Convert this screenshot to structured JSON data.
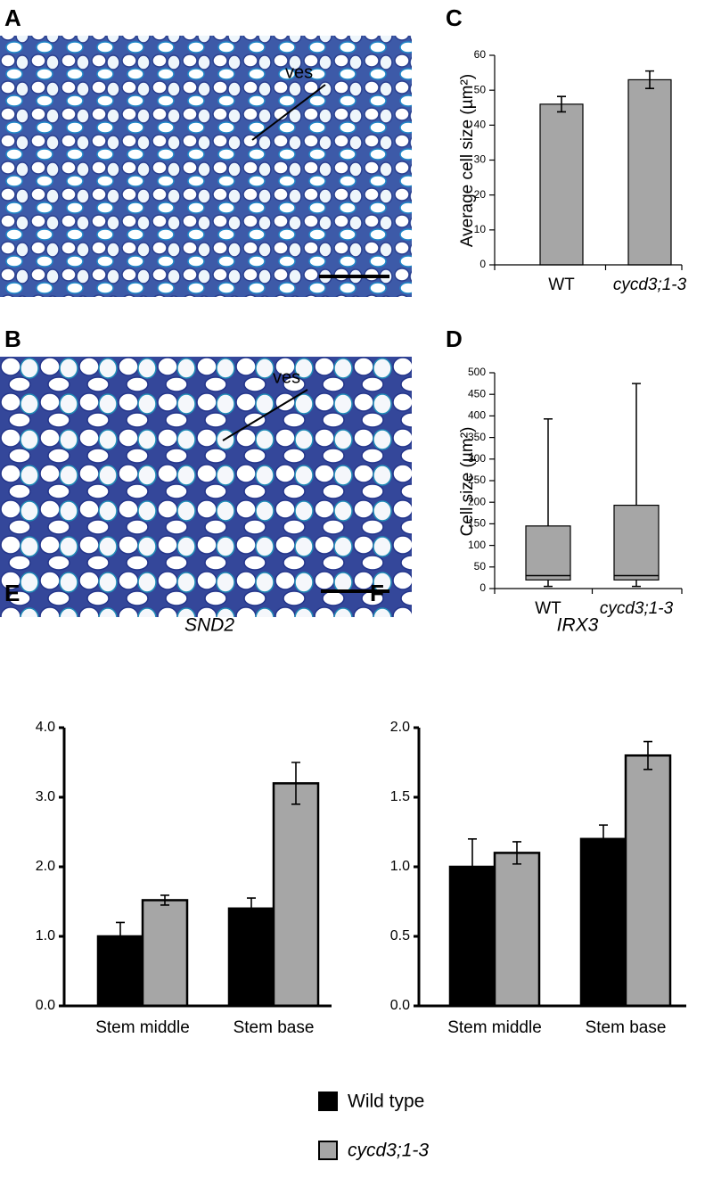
{
  "panel_labels": [
    "A",
    "B",
    "C",
    "D",
    "E",
    "F"
  ],
  "micrographs": [
    {
      "label": "ves"
    },
    {
      "label": "ves"
    }
  ],
  "chart_data": [
    {
      "type": "bar",
      "ylabel": "Average cell size (µm²)",
      "categories": [
        "WT",
        "cycd3;1-3"
      ],
      "values": [
        46,
        53
      ],
      "errors": [
        2.2,
        2.5
      ],
      "color": "#a6a6a6",
      "ylim": [
        0,
        60
      ],
      "yticks": [
        0,
        10,
        20,
        30,
        40,
        50,
        60
      ]
    },
    {
      "type": "box",
      "ylabel": "Cell size (µm²)",
      "categories": [
        "WT",
        "cycd3;1-3"
      ],
      "min": [
        5,
        5
      ],
      "q1": [
        20,
        20
      ],
      "median": [
        30,
        30
      ],
      "q3": [
        145,
        193
      ],
      "max": [
        393,
        475
      ],
      "color": "#a6a6a6",
      "ylim": [
        0,
        500
      ],
      "yticks": [
        0,
        50,
        100,
        150,
        200,
        250,
        300,
        350,
        400,
        450,
        500
      ]
    },
    {
      "type": "bar",
      "title": "SND2",
      "categories": [
        "Stem middle",
        "Stem base"
      ],
      "series": [
        {
          "name": "Wild type",
          "color": "#000000",
          "values": [
            1.0,
            1.4
          ],
          "errors": [
            0.2,
            0.15
          ]
        },
        {
          "name": "cycd3;1-3",
          "color": "#a6a6a6",
          "values": [
            1.52,
            3.2
          ],
          "errors": [
            0.07,
            0.3
          ]
        }
      ],
      "ylim": [
        0,
        4
      ],
      "yticks": [
        {
          "value": 0,
          "label": "0.0"
        },
        {
          "value": 1,
          "label": "1.0"
        },
        {
          "value": 2,
          "label": "2.0"
        },
        {
          "value": 3,
          "label": "3.0"
        },
        {
          "value": 4,
          "label": "4.0"
        }
      ]
    },
    {
      "type": "bar",
      "title": "IRX3",
      "categories": [
        "Stem middle",
        "Stem base"
      ],
      "series": [
        {
          "name": "Wild type",
          "color": "#000000",
          "values": [
            1.0,
            1.2
          ],
          "errors": [
            0.2,
            0.1
          ]
        },
        {
          "name": "cycd3;1-3",
          "color": "#a6a6a6",
          "values": [
            1.1,
            1.8
          ],
          "errors": [
            0.08,
            0.1
          ]
        }
      ],
      "ylim": [
        0,
        2
      ],
      "yticks": [
        {
          "value": 0,
          "label": "0.0"
        },
        0.5,
        {
          "value": 1,
          "label": "1.0"
        },
        1.5,
        {
          "value": 2,
          "label": "2.0"
        }
      ]
    }
  ]
}
